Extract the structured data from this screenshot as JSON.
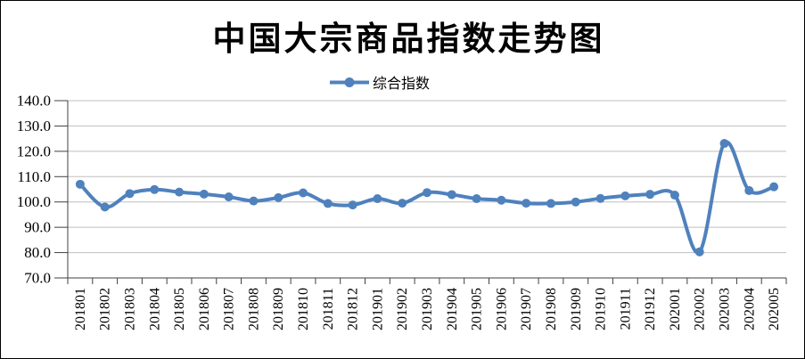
{
  "chart_data": {
    "type": "line",
    "title": "中国大宗商品指数走势图",
    "legend": [
      "综合指数"
    ],
    "legend_position": "top-center",
    "smooth": true,
    "marker": "circle",
    "grid": true,
    "xlabel": "",
    "ylabel": "",
    "ylim": [
      70,
      140
    ],
    "ytick_step": 10,
    "ytick_labels": [
      "140.0",
      "130.0",
      "120.0",
      "110.0",
      "100.0",
      "90.0",
      "80.0",
      "70.0"
    ],
    "categories": [
      "201801",
      "201802",
      "201803",
      "201804",
      "201805",
      "201806",
      "201807",
      "201808",
      "201809",
      "201810",
      "201811",
      "201812",
      "201901",
      "201902",
      "201903",
      "201904",
      "201905",
      "201906",
      "201907",
      "201908",
      "201909",
      "201910",
      "201911",
      "201912",
      "202001",
      "202002",
      "202003",
      "202004",
      "202005"
    ],
    "series": [
      {
        "name": "综合指数",
        "values": [
          107.0,
          98.0,
          103.3,
          104.9,
          103.9,
          103.1,
          102.0,
          100.4,
          101.7,
          103.6,
          99.4,
          98.8,
          101.3,
          99.5,
          103.7,
          102.9,
          101.3,
          100.7,
          99.5,
          99.4,
          100.0,
          101.4,
          102.4,
          103.0,
          102.7,
          80.3,
          123.1,
          104.5,
          106.0
        ]
      }
    ],
    "colors": {
      "line": "#4F81BD",
      "grid": "#BFBFBF",
      "axis": "#404040",
      "text": "#000000",
      "background": "#FFFFFF",
      "border": "#000000"
    }
  }
}
